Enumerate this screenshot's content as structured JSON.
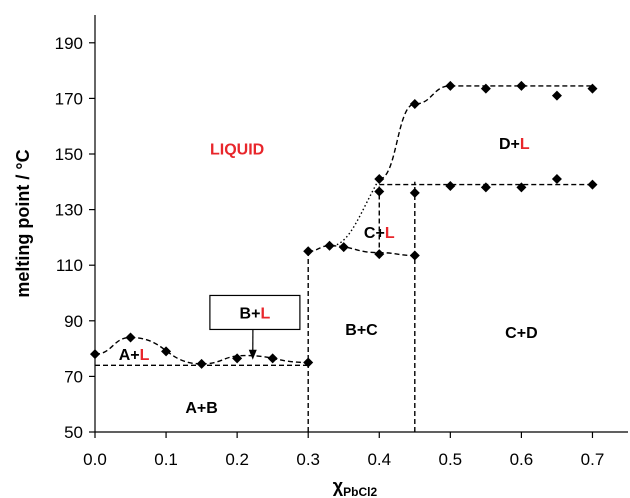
{
  "chart_data": {
    "type": "scatter",
    "ylabel": "melting point / °C",
    "xlabel": "χ",
    "xlabel_sub": "PbCl2",
    "xlim": [
      0,
      0.75
    ],
    "ylim": [
      50,
      200
    ],
    "xticks": [
      "0.0",
      "0.1",
      "0.2",
      "0.3",
      "0.4",
      "0.5",
      "0.6",
      "0.7"
    ],
    "yticks": [
      "50",
      "70",
      "90",
      "110",
      "130",
      "150",
      "170",
      "190"
    ],
    "grid": false,
    "legend": "none",
    "marker_color": "#000000",
    "accent_color": "#e8262b",
    "series": [
      {
        "x": [
          0.0,
          0.05,
          0.1,
          0.15,
          0.2,
          0.25,
          0.3,
          0.3,
          0.33,
          0.35,
          0.4,
          0.4,
          0.4,
          0.45,
          0.45,
          0.45,
          0.5,
          0.5,
          0.55,
          0.55,
          0.6,
          0.6,
          0.65,
          0.65,
          0.7,
          0.7
        ],
        "y": [
          78,
          84,
          79,
          74.5,
          76.5,
          76.5,
          75,
          115,
          117,
          116.5,
          114,
          141,
          136.5,
          113.5,
          136,
          168,
          174.5,
          138.5,
          173.5,
          138,
          174.5,
          138,
          171,
          141,
          173.5,
          139
        ]
      }
    ],
    "regions": [
      {
        "parts": [
          "LIQUID"
        ],
        "colors": [
          "red"
        ],
        "x": 0.2,
        "y": 152
      },
      {
        "parts": [
          "A+",
          "L"
        ],
        "colors": [
          "black",
          "red"
        ],
        "x": 0.055,
        "y": 78
      },
      {
        "parts": [
          "A+B"
        ],
        "colors": [
          "black"
        ],
        "x": 0.15,
        "y": 59
      },
      {
        "parts": [
          "B+C"
        ],
        "colors": [
          "black"
        ],
        "x": 0.375,
        "y": 87
      },
      {
        "parts": [
          "C+",
          "L"
        ],
        "colors": [
          "black",
          "red"
        ],
        "x": 0.4,
        "y": 122
      },
      {
        "parts": [
          "D+",
          "L"
        ],
        "colors": [
          "black",
          "red"
        ],
        "x": 0.59,
        "y": 154
      },
      {
        "parts": [
          "C+D"
        ],
        "colors": [
          "black"
        ],
        "x": 0.6,
        "y": 86
      }
    ],
    "callout": {
      "parts": [
        "B+",
        "L"
      ],
      "colors": [
        "black",
        "red"
      ],
      "box_center": [
        0.225,
        93
      ],
      "arrow_to": [
        0.222,
        76
      ]
    }
  }
}
